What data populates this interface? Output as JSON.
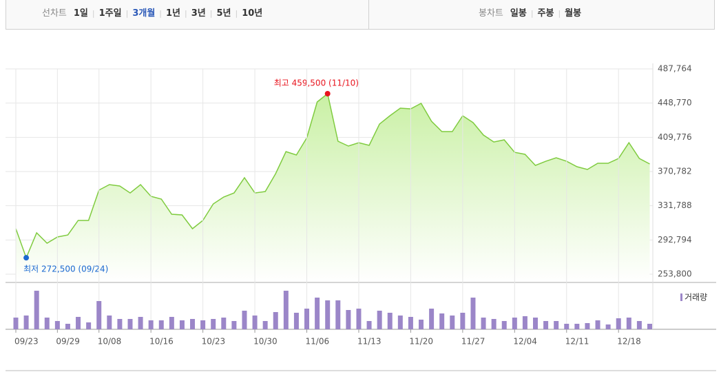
{
  "toolbar": {
    "line_label": "선차트",
    "periods": [
      "1일",
      "1주일",
      "3개월",
      "1년",
      "3년",
      "5년",
      "10년"
    ],
    "selected_period_index": 2,
    "candle_label": "봉차트",
    "candles": [
      "일봉",
      "주봉",
      "월봉"
    ]
  },
  "chart_data": [
    {
      "type": "line",
      "color": "#7fcb3f",
      "fill_color": "#c9f0a4",
      "grid": true,
      "values": [
        305600,
        272500,
        300900,
        289100,
        296200,
        298500,
        315000,
        315000,
        349600,
        355900,
        354300,
        346400,
        355900,
        342500,
        339400,
        322100,
        321300,
        305600,
        315000,
        333900,
        341700,
        346400,
        363700,
        346400,
        348000,
        368400,
        393500,
        389600,
        409200,
        450100,
        459500,
        405300,
        399800,
        403700,
        400600,
        424900,
        434400,
        443000,
        442200,
        448500,
        428100,
        416300,
        416300,
        434400,
        426500,
        412400,
        404500,
        406900,
        392700,
        390400,
        377800,
        382500,
        386500,
        382500,
        376300,
        373100,
        380200,
        380200,
        385700,
        403700,
        385700,
        379400
      ],
      "ylim": [
        253800,
        487764
      ],
      "yticks": [
        {
          "value": 253800,
          "label": "253,800"
        },
        {
          "value": 292794,
          "label": "292,794"
        },
        {
          "value": 331788,
          "label": "331,788"
        },
        {
          "value": 370782,
          "label": "370,782"
        },
        {
          "value": 409776,
          "label": "409,776"
        },
        {
          "value": 448770,
          "label": "448,770"
        },
        {
          "value": 487764,
          "label": "487,764"
        }
      ],
      "annotations": [
        {
          "text": "최고 459,500 (11/10)",
          "index": 30,
          "color": "#e8141e"
        },
        {
          "text": "최저 272,500 (09/24)",
          "index": 1,
          "color": "#1a68d0"
        }
      ]
    },
    {
      "type": "bar",
      "legend": "top-right",
      "categories": [
        "09/23",
        null,
        null,
        null,
        "09/29",
        null,
        null,
        null,
        "10/08",
        null,
        null,
        null,
        null,
        "10/16",
        null,
        null,
        null,
        null,
        "10/23",
        null,
        null,
        null,
        null,
        "10/30",
        null,
        null,
        null,
        null,
        "11/06",
        null,
        null,
        null,
        null,
        "11/13",
        null,
        null,
        null,
        null,
        "11/20",
        null,
        null,
        null,
        null,
        "11/27",
        null,
        null,
        null,
        null,
        "12/04",
        null,
        null,
        null,
        null,
        "12/11",
        null,
        null,
        null,
        null,
        "12/18",
        null,
        null,
        null
      ],
      "series": [
        {
          "name": "거래량",
          "color": "#9b86c8",
          "values": [
            17,
            20,
            56,
            17,
            12,
            8,
            18,
            10,
            41,
            20,
            15,
            15,
            18,
            13,
            13,
            18,
            13,
            15,
            13,
            15,
            17,
            12,
            27,
            20,
            12,
            25,
            56,
            24,
            30,
            46,
            42,
            42,
            28,
            30,
            12,
            27,
            24,
            20,
            18,
            14,
            30,
            23,
            20,
            24,
            46,
            17,
            15,
            12,
            17,
            19,
            17,
            12,
            12,
            8,
            8,
            9,
            13,
            7,
            16,
            17,
            12,
            8
          ]
        }
      ]
    }
  ]
}
